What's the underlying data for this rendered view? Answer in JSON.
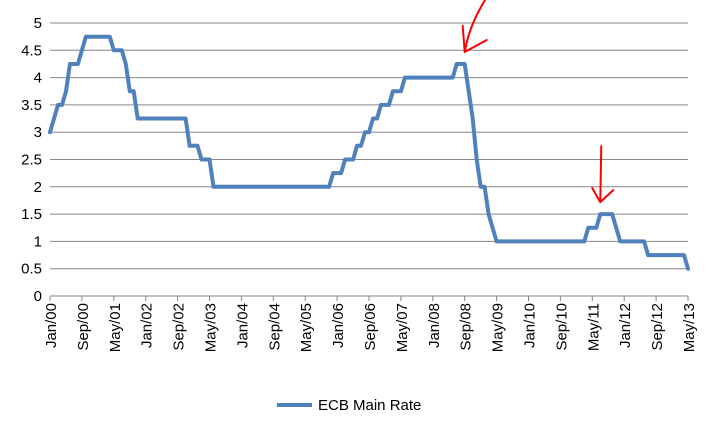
{
  "chart_data": {
    "type": "line",
    "title": "",
    "xlabel": "",
    "ylabel": "",
    "ylim": [
      0,
      5
    ],
    "yticks": [
      "0",
      "0.5",
      "1",
      "1.5",
      "2",
      "2.5",
      "3",
      "3.5",
      "4",
      "4.5",
      "5"
    ],
    "xticks": [
      "Jan/00",
      "Sep/00",
      "May/01",
      "Jan/02",
      "Sep/02",
      "May/03",
      "Jan/04",
      "Sep/04",
      "May/05",
      "Jan/06",
      "Sep/06",
      "May/07",
      "Jan/08",
      "Sep/08",
      "May/09",
      "Jan/10",
      "Sep/10",
      "May/11",
      "Jan/12",
      "Sep/12",
      "May/13"
    ],
    "grid": "horizontal",
    "legend": "bottom",
    "series": [
      {
        "name": "ECB Main Rate",
        "color": "#4f81bd",
        "points": [
          [
            "2000-01",
            3.0
          ],
          [
            "2000-02",
            3.25
          ],
          [
            "2000-03",
            3.5
          ],
          [
            "2000-04",
            3.5
          ],
          [
            "2000-05",
            3.75
          ],
          [
            "2000-06",
            4.25
          ],
          [
            "2000-07",
            4.25
          ],
          [
            "2000-08",
            4.25
          ],
          [
            "2000-09",
            4.5
          ],
          [
            "2000-10",
            4.75
          ],
          [
            "2001-04",
            4.75
          ],
          [
            "2001-05",
            4.5
          ],
          [
            "2001-07",
            4.5
          ],
          [
            "2001-08",
            4.25
          ],
          [
            "2001-09",
            3.75
          ],
          [
            "2001-10",
            3.75
          ],
          [
            "2001-11",
            3.25
          ],
          [
            "2002-11",
            3.25
          ],
          [
            "2002-12",
            2.75
          ],
          [
            "2003-02",
            2.75
          ],
          [
            "2003-03",
            2.5
          ],
          [
            "2003-05",
            2.5
          ],
          [
            "2003-06",
            2.0
          ],
          [
            "2005-11",
            2.0
          ],
          [
            "2005-12",
            2.25
          ],
          [
            "2006-02",
            2.25
          ],
          [
            "2006-03",
            2.5
          ],
          [
            "2006-05",
            2.5
          ],
          [
            "2006-06",
            2.75
          ],
          [
            "2006-07",
            2.75
          ],
          [
            "2006-08",
            3.0
          ],
          [
            "2006-09",
            3.0
          ],
          [
            "2006-10",
            3.25
          ],
          [
            "2006-11",
            3.25
          ],
          [
            "2006-12",
            3.5
          ],
          [
            "2007-02",
            3.5
          ],
          [
            "2007-03",
            3.75
          ],
          [
            "2007-05",
            3.75
          ],
          [
            "2007-06",
            4.0
          ],
          [
            "2008-06",
            4.0
          ],
          [
            "2008-07",
            4.25
          ],
          [
            "2008-09",
            4.25
          ],
          [
            "2008-10",
            3.75
          ],
          [
            "2008-11",
            3.25
          ],
          [
            "2008-12",
            2.5
          ],
          [
            "2009-01",
            2.0
          ],
          [
            "2009-02",
            2.0
          ],
          [
            "2009-03",
            1.5
          ],
          [
            "2009-04",
            1.25
          ],
          [
            "2009-05",
            1.0
          ],
          [
            "2011-03",
            1.0
          ],
          [
            "2011-04",
            1.25
          ],
          [
            "2011-06",
            1.25
          ],
          [
            "2011-07",
            1.5
          ],
          [
            "2011-10",
            1.5
          ],
          [
            "2011-11",
            1.25
          ],
          [
            "2011-12",
            1.0
          ],
          [
            "2012-06",
            1.0
          ],
          [
            "2012-07",
            0.75
          ],
          [
            "2013-04",
            0.75
          ],
          [
            "2013-05",
            0.5
          ]
        ]
      }
    ],
    "annotations": [
      {
        "type": "arrow",
        "color": "#ff0000",
        "target": "2008-09"
      },
      {
        "type": "arrow",
        "color": "#ff0000",
        "target": "2011-07"
      }
    ]
  }
}
